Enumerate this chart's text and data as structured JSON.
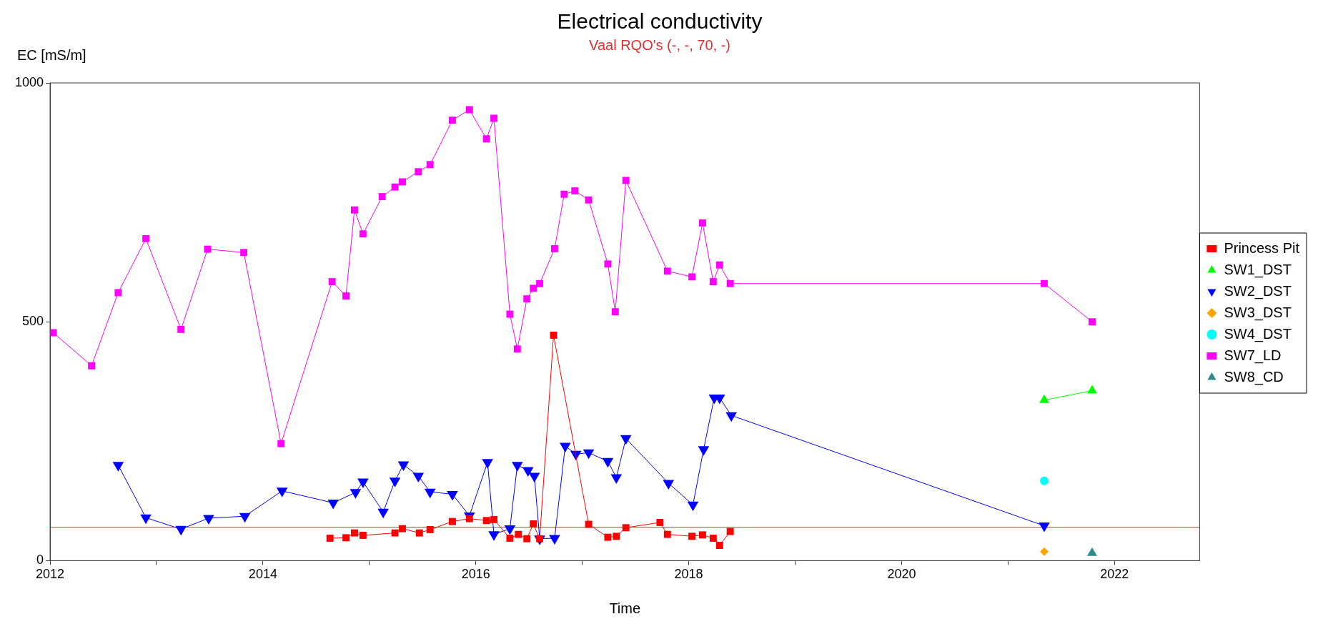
{
  "chart_data": {
    "type": "line",
    "title": "Electrical conductivity",
    "subtitle": "Vaal RQO's (-, -, 70, -)",
    "xlabel": "Time",
    "ylabel": "EC [mS/m]",
    "xlim": [
      2012,
      2022.8
    ],
    "xticks": [
      2012,
      {
        "value": 2013,
        "label": null
      },
      2014,
      {
        "value": 2015,
        "label": null
      },
      2016,
      {
        "value": 2017,
        "label": null
      },
      2018,
      {
        "value": 2019,
        "label": null
      },
      2020,
      {
        "value": 2021,
        "label": null
      },
      2022
    ],
    "ylim": [
      0,
      1000
    ],
    "yticks": [
      0,
      500,
      1000
    ],
    "grid": false,
    "legend": "right",
    "line_style": "solid",
    "ref_lines": [
      {
        "axis": "y",
        "value": 70,
        "color": "#e03030"
      }
    ],
    "series": [
      {
        "name": "Princess Pit",
        "color": "#ff0000",
        "marker": "square",
        "x": [
          2014.63,
          2014.78,
          2014.86,
          2014.94,
          2015.24,
          2015.31,
          2015.47,
          2015.57,
          2015.78,
          2015.94,
          2016.1,
          2016.17,
          2016.32,
          2016.4,
          2016.48,
          2016.54,
          2016.6,
          2016.73,
          2017.06,
          2017.24,
          2017.32,
          2017.41,
          2017.73,
          2017.8,
          2018.03,
          2018.13,
          2018.23,
          2018.29,
          2018.39
        ],
        "values": [
          47,
          48,
          58,
          53,
          58,
          67,
          58,
          65,
          82,
          88,
          84,
          86,
          47,
          55,
          46,
          77,
          46,
          472,
          76,
          49,
          51,
          69,
          80,
          55,
          51,
          54,
          47,
          32,
          61
        ]
      },
      {
        "name": "SW1_DST",
        "color": "#00ff00",
        "marker": "triangle",
        "x": [
          2021.34,
          2021.79
        ],
        "values": [
          336,
          356
        ]
      },
      {
        "name": "SW2_DST",
        "color": "#0000ff",
        "marker": "triangle-down",
        "x": [
          2012.64,
          2012.9,
          2013.23,
          2013.49,
          2013.83,
          2014.18,
          2014.66,
          2014.87,
          2014.94,
          2015.13,
          2015.24,
          2015.32,
          2015.46,
          2015.57,
          2015.78,
          2015.94,
          2016.11,
          2016.17,
          2016.32,
          2016.39,
          2016.49,
          2016.55,
          2016.6,
          2016.74,
          2016.84,
          2016.94,
          2017.06,
          2017.24,
          2017.32,
          2017.41,
          2017.81,
          2018.04,
          2018.14,
          2018.24,
          2018.29,
          2018.4,
          2021.34
        ],
        "values": [
          200,
          90,
          66,
          89,
          93,
          146,
          121,
          143,
          165,
          102,
          167,
          201,
          177,
          144,
          139,
          94,
          206,
          55,
          67,
          200,
          189,
          177,
          46,
          47,
          240,
          223,
          226,
          208,
          174,
          256,
          162,
          117,
          233,
          341,
          341,
          304,
          73
        ]
      },
      {
        "name": "SW3_DST",
        "color": "#ffa500",
        "marker": "diamond",
        "x": [
          2021.34
        ],
        "values": [
          19
        ]
      },
      {
        "name": "SW4_DST",
        "color": "#00ffff",
        "marker": "circle",
        "x": [
          2021.34
        ],
        "values": [
          167
        ]
      },
      {
        "name": "SW7_LD",
        "color": "#ff00ff",
        "marker": "square",
        "x": [
          2012.03,
          2012.39,
          2012.64,
          2012.9,
          2013.23,
          2013.48,
          2013.82,
          2014.17,
          2014.65,
          2014.78,
          2014.86,
          2014.94,
          2015.12,
          2015.24,
          2015.31,
          2015.46,
          2015.57,
          2015.78,
          2015.94,
          2016.1,
          2016.17,
          2016.32,
          2016.39,
          2016.48,
          2016.54,
          2016.6,
          2016.74,
          2016.83,
          2016.93,
          2017.06,
          2017.24,
          2017.31,
          2017.41,
          2017.8,
          2018.03,
          2018.13,
          2018.23,
          2018.29,
          2018.39,
          2021.34,
          2021.79
        ],
        "values": [
          477,
          408,
          561,
          674,
          484,
          652,
          645,
          245,
          584,
          554,
          734,
          684,
          762,
          782,
          793,
          814,
          829,
          922,
          944,
          883,
          926,
          516,
          443,
          548,
          570,
          580,
          653,
          767,
          774,
          755,
          621,
          521,
          796,
          606,
          594,
          707,
          584,
          619,
          580,
          580,
          500
        ]
      },
      {
        "name": "SW8_CD",
        "color": "#2e8b8b",
        "marker": "triangle",
        "x": [
          2021.79
        ],
        "values": [
          16
        ]
      }
    ]
  }
}
